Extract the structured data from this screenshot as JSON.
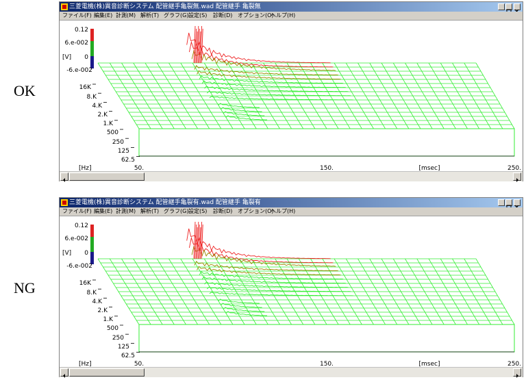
{
  "labels": {
    "top": "OK",
    "bottom": "NG"
  },
  "menu": [
    "ファイル(F)",
    "編集(E)",
    "計測(M)",
    "解析(T)",
    "グラフ(G)",
    "設定(S)",
    "診断(D)",
    "オプション(O)",
    "ヘルプ(H)"
  ],
  "colors": {
    "grid": "#33ee33",
    "peak": "#ee2222",
    "mid": "#998800",
    "titlebar": "#0a246a"
  },
  "windows": [
    {
      "title": "三菱電機(株)異音診断システム  配管継手亀裂無.wad  配管継手 亀裂無",
      "yticks": [
        "0.12",
        "6.e-002",
        "0",
        "-6.e-002"
      ],
      "yunit": "[V]",
      "fticks": [
        "16K",
        "8.K",
        "4.K",
        "2.K",
        "1.K",
        "500",
        "250",
        "125",
        "62.5"
      ],
      "funit": "[Hz]",
      "xticks": [
        "50.",
        "150.",
        "250."
      ],
      "xunit": "[msec]",
      "peak_scale": 1.0
    },
    {
      "title": "三菱電機(株)異音診断システム  配管継手亀裂有.wad  配管継手 亀裂有",
      "yticks": [
        "0.12",
        "6.e-002",
        "0",
        "-6.e-002"
      ],
      "yunit": "[V]",
      "fticks": [
        "16K",
        "8.K",
        "4.K",
        "2.K",
        "1.K",
        "500",
        "250",
        "125",
        "62.5"
      ],
      "funit": "[Hz]",
      "xticks": [
        "50.",
        "150.",
        "250."
      ],
      "xunit": "[msec]",
      "peak_scale": 1.0
    }
  ]
}
